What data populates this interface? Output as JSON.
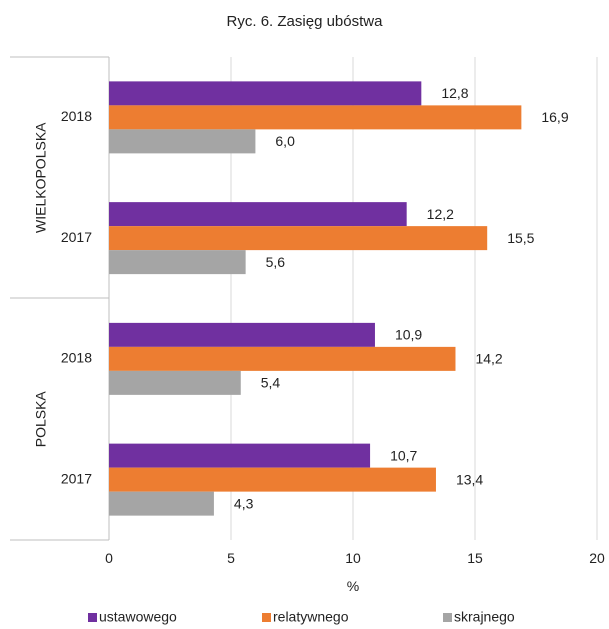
{
  "chart_data": {
    "type": "bar",
    "orientation": "horizontal",
    "title": "Ryc. 6. Zasięg ubóstwa",
    "xlabel": "%",
    "ylabel": "",
    "xlim": [
      0,
      20
    ],
    "x_ticks": [
      "0",
      "5",
      "10",
      "15",
      "20"
    ],
    "grid": true,
    "legend_position": "bottom",
    "groups": [
      {
        "name": "WIELKOPOLSKA",
        "years": [
          {
            "year": "2018",
            "values": [
              12.8,
              16.9,
              6.0
            ],
            "labels": [
              "12,8",
              "16,9",
              "6,0"
            ]
          },
          {
            "year": "2017",
            "values": [
              12.2,
              15.5,
              5.6
            ],
            "labels": [
              "12,2",
              "15,5",
              "5,6"
            ]
          }
        ]
      },
      {
        "name": "POLSKA",
        "years": [
          {
            "year": "2018",
            "values": [
              10.9,
              14.2,
              5.4
            ],
            "labels": [
              "10,9",
              "14,2",
              "5,4"
            ]
          },
          {
            "year": "2017",
            "values": [
              10.7,
              13.4,
              4.3
            ],
            "labels": [
              "10,7",
              "13,4",
              "4,3"
            ]
          }
        ]
      }
    ],
    "series": [
      {
        "name": "ustawowego",
        "color": "#7030a0"
      },
      {
        "name": "relatywnego",
        "color": "#ed7d31"
      },
      {
        "name": "skrajnego",
        "color": "#a5a5a5"
      }
    ]
  }
}
